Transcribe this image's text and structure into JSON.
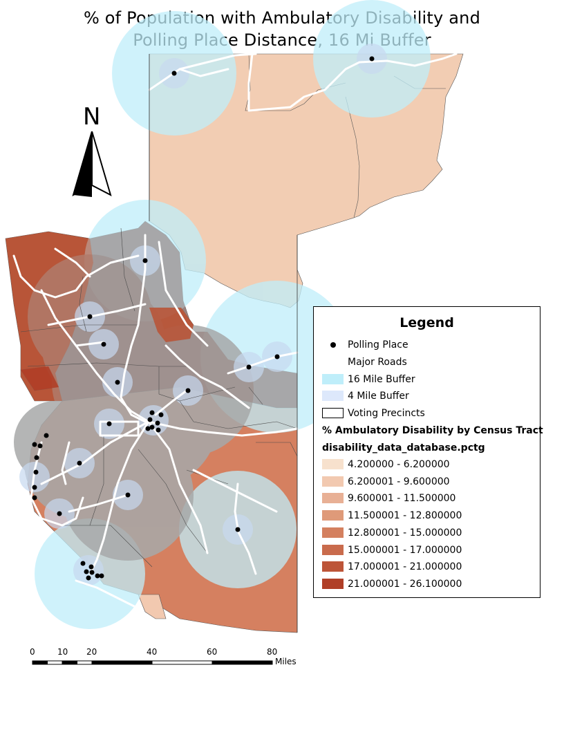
{
  "title": {
    "line1": "% of Population with Ambulatory Disability and",
    "line2": "Polling Place Distance, 16 Mi Buffer"
  },
  "north_arrow": {
    "label": "N"
  },
  "legend": {
    "title": "Legend",
    "polling_place": "Polling Place",
    "major_roads": "Major Roads",
    "buffer_16": "16 Mile Buffer",
    "buffer_4": "4 Mile Buffer",
    "voting_precincts": "Voting Precincts",
    "layer_title": "% Ambulatory Disability by Census Tract",
    "field_name": "disability_data_database.pctg",
    "classes": [
      {
        "label": "4.200000 - 6.200000",
        "color": "#f7e1cd"
      },
      {
        "label": "6.200001 - 9.600000",
        "color": "#f2c9b0"
      },
      {
        "label": "9.600001 - 11.500000",
        "color": "#e8b095"
      },
      {
        "label": "11.500001 - 12.800000",
        "color": "#df9a79"
      },
      {
        "label": "12.800001 - 15.000000",
        "color": "#d4805f"
      },
      {
        "label": "15.000001 - 17.000000",
        "color": "#c96b4c"
      },
      {
        "label": "17.000001 - 21.000000",
        "color": "#bd5538"
      },
      {
        "label": "21.000001 - 26.100000",
        "color": "#b03f28"
      }
    ],
    "colors": {
      "buffer_16": "#bfeefa",
      "buffer_4": "#dde8fb",
      "roads": "#ffffff",
      "overlap_dark": "#a7a9a9",
      "overlap_red": "#9b8380"
    }
  },
  "scale_bar": {
    "ticks": [
      "0",
      "10",
      "20",
      "40",
      "60",
      "80"
    ],
    "unit": "Miles"
  }
}
